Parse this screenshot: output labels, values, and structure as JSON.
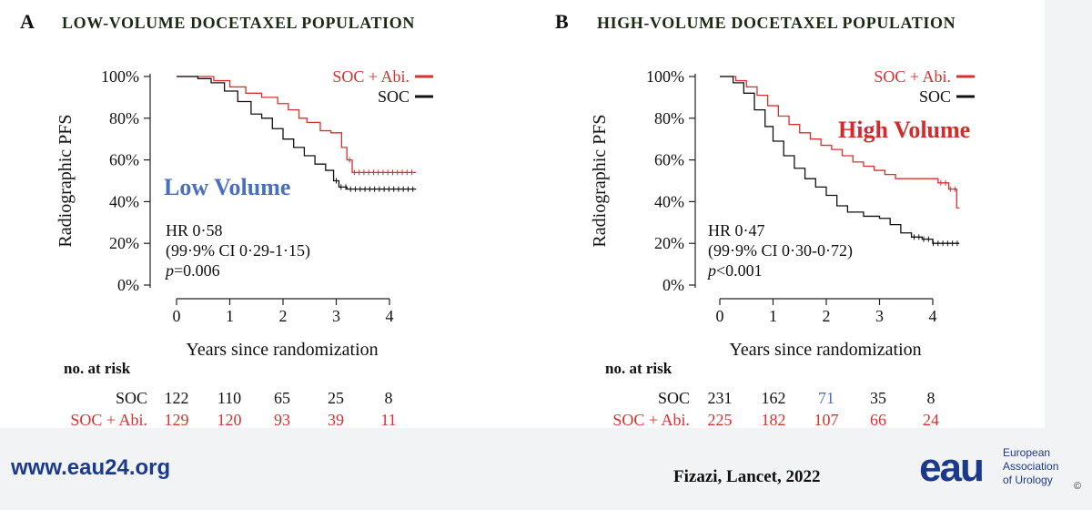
{
  "colors": {
    "red": "#d93030",
    "black": "#111111",
    "blue": "#4a6fc0",
    "label_red": "#d42a2a",
    "panel_bg": "#ffffff"
  },
  "footer": {
    "url": "www.eau24.org",
    "citation": "Fizazi, Lancet, 2022",
    "logo_text": "eau",
    "org": [
      "European",
      "Association",
      "of Urology"
    ],
    "copyright": "©"
  },
  "chart_data": [
    {
      "type": "line",
      "panel_letter": "A",
      "title": "LOW-VOLUME DOCETAXEL POPULATION",
      "xlabel": "Years since randomization",
      "ylabel": "Radiographic PFS",
      "xlim": [
        0,
        4.5
      ],
      "ylim": [
        0,
        100
      ],
      "xticks": [
        0,
        1,
        2,
        3,
        4
      ],
      "yticks": [
        "0%",
        "20%",
        "40%",
        "60%",
        "80%",
        "100%"
      ],
      "legend": {
        "position": "top-right",
        "entries": [
          "SOC + Abi.",
          "SOC"
        ]
      },
      "overlay_label": "Low Volume",
      "stats": {
        "hr": "HR 0·58",
        "ci": "(99·9% CI 0·29-1·15)",
        "p_prefix": "p",
        "p_value": "=0.006"
      },
      "series": [
        {
          "name": "SOC + Abi.",
          "color": "#d93030",
          "x": [
            0,
            0.45,
            0.7,
            1.0,
            1.3,
            1.6,
            1.9,
            2.1,
            2.3,
            2.45,
            2.7,
            2.9,
            3.1,
            3.2,
            3.3,
            3.5,
            4.5
          ],
          "y": [
            100,
            100,
            98,
            95,
            92,
            90,
            87,
            84,
            80,
            78,
            74,
            73,
            66,
            60,
            54,
            54,
            54
          ]
        },
        {
          "name": "SOC",
          "color": "#111111",
          "x": [
            0,
            0.4,
            0.65,
            0.9,
            1.15,
            1.4,
            1.6,
            1.8,
            2.0,
            2.2,
            2.4,
            2.6,
            2.8,
            2.95,
            3.05,
            3.2,
            4.5
          ],
          "y": [
            100,
            99,
            97,
            93,
            88,
            82,
            80,
            75,
            70,
            66,
            62,
            58,
            55,
            50,
            47,
            46,
            46
          ]
        }
      ],
      "risk_table": {
        "header": "no. at risk",
        "rows": [
          {
            "label": "SOC",
            "values": [
              "122",
              "110",
              "65",
              "25",
              "8"
            ]
          },
          {
            "label": "SOC + Abi.",
            "values": [
              "129",
              "120",
              "93",
              "39",
              "11"
            ]
          }
        ]
      }
    },
    {
      "type": "line",
      "panel_letter": "B",
      "title": "HIGH-VOLUME DOCETAXEL POPULATION",
      "xlabel": "Years since randomization",
      "ylabel": "Radiographic PFS",
      "xlim": [
        0,
        4.5
      ],
      "ylim": [
        0,
        100
      ],
      "xticks": [
        0,
        1,
        2,
        3,
        4
      ],
      "yticks": [
        "0%",
        "20%",
        "40%",
        "60%",
        "80%",
        "100%"
      ],
      "legend": {
        "position": "top-right",
        "entries": [
          "SOC + Abi.",
          "SOC"
        ]
      },
      "overlay_label": "High Volume",
      "stats": {
        "hr": "HR 0·47",
        "ci": "(99·9% CI 0·30-0·72)",
        "p_prefix": "p",
        "p_value": "<0.001"
      },
      "series": [
        {
          "name": "SOC + Abi.",
          "color": "#d93030",
          "x": [
            0,
            0.3,
            0.5,
            0.7,
            0.9,
            1.1,
            1.3,
            1.5,
            1.7,
            1.9,
            2.1,
            2.3,
            2.5,
            2.7,
            2.9,
            3.1,
            3.3,
            3.6,
            3.9,
            4.1,
            4.3,
            4.45,
            4.5
          ],
          "y": [
            100,
            98,
            95,
            91,
            86,
            81,
            77,
            73,
            70,
            67,
            65,
            62,
            59,
            57,
            55,
            53,
            51,
            51,
            51,
            49,
            46,
            37,
            37
          ]
        },
        {
          "name": "SOC",
          "color": "#111111",
          "x": [
            0,
            0.25,
            0.45,
            0.65,
            0.85,
            1.0,
            1.2,
            1.4,
            1.6,
            1.8,
            2.0,
            2.2,
            2.4,
            2.7,
            3.0,
            3.2,
            3.4,
            3.6,
            3.8,
            4.0,
            4.5
          ],
          "y": [
            100,
            97,
            92,
            84,
            76,
            69,
            62,
            56,
            51,
            47,
            43,
            38,
            35,
            33,
            32,
            29,
            25,
            23,
            22,
            20,
            20
          ]
        }
      ],
      "risk_table": {
        "header": "no. at risk",
        "rows": [
          {
            "label": "SOC",
            "values": [
              "231",
              "162",
              "71",
              "35",
              "8"
            ],
            "highlight_index": 2
          },
          {
            "label": "SOC + Abi.",
            "values": [
              "225",
              "182",
              "107",
              "66",
              "24"
            ]
          }
        ]
      }
    }
  ]
}
